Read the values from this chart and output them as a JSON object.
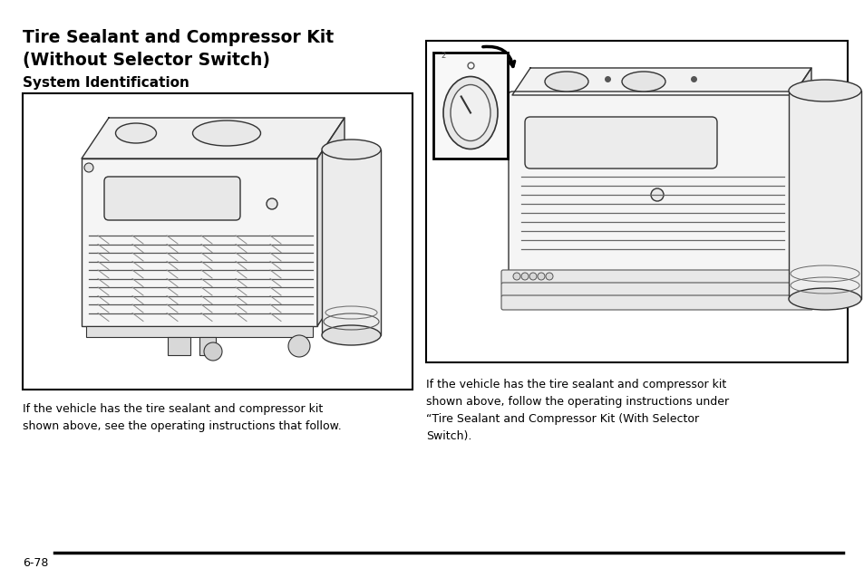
{
  "background_color": "#ffffff",
  "page_width": 9.54,
  "page_height": 6.38,
  "title_line1": "Tire Sealant and Compressor Kit",
  "title_line2": "(Without Selector Switch)",
  "subtitle": "System Identification",
  "left_body_text": "If the vehicle has the tire sealant and compressor kit\nshown above, see the operating instructions that follow.",
  "right_body_text": "If the vehicle has the tire sealant and compressor kit\nshown above, follow the operating instructions under\n“Tire Sealant and Compressor Kit (With Selector\nSwitch).",
  "page_number": "6-78",
  "title_fontsize": 13.5,
  "subtitle_fontsize": 11,
  "body_fontsize": 9,
  "page_num_fontsize": 9,
  "text_color": "#000000",
  "border_color": "#000000",
  "line_color": "#000000"
}
